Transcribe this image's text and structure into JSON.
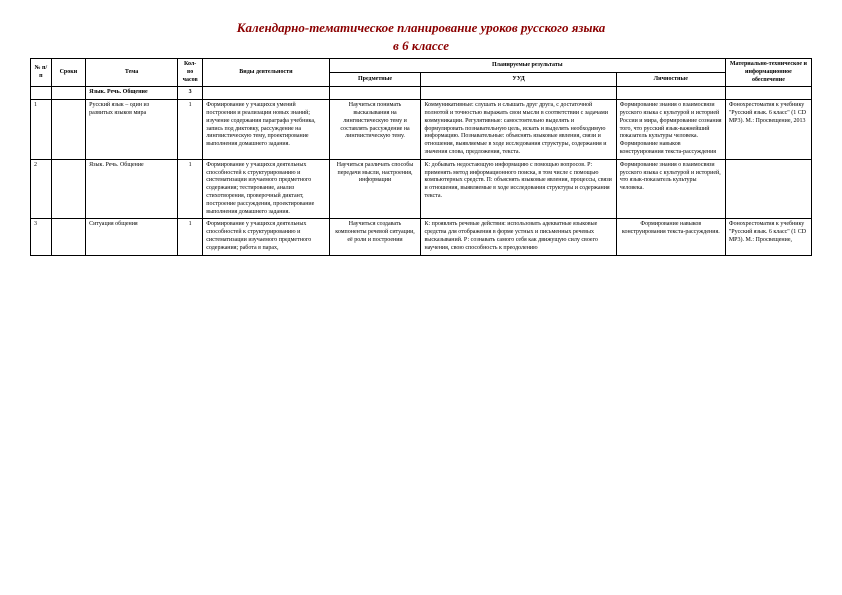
{
  "title": "Календарно-тематическое планирование уроков русского языка",
  "subtitle": "в 6 классе",
  "headers": {
    "num": "№ п/п",
    "date": "Сроки",
    "topic": "Тема",
    "hours": "Кол-во часов",
    "activity": "Виды деятельности",
    "results": "Планируемые результаты",
    "subject": "Предметные",
    "uud": "УУД",
    "personal": "Личностные",
    "material": "Материально-техническое и информационное обеспечение"
  },
  "section": {
    "topic": "Язык. Речь. Общение",
    "hours": "3"
  },
  "rows": [
    {
      "num": "1",
      "date": "",
      "topic": "Русский язык – один из развитых языков мира",
      "hours": "1",
      "activity": "Формирование у учащихся умений построения и реализации новых знаний; изучение содержания параграфа учебника, запись под диктовку, рассуждение на лингвистическую тему, проектирование выполнения домашнего задания.",
      "subject": "Научиться понимать высказывания на лингвистическую тему и составлять рассуждение на лингвистическую тему.",
      "uud": "Коммуникативные: слушать и слышать друг друга, с достаточной полнотой и точностью выражать свои мысли в соответствии с задачами коммуникации. Регулятивные: самостоятельно выделять и формулировать познавательную цель, искать и выделять необходимую информацию. Познавательные: объяснять языковые явления, связи и отношения, выявляемые в ходе исследования структуры, содержания и значения слова, предложения, текста.",
      "personal": "Формирование знания о взаимосвязи русского языка с культурой и историей России и мира, формирование сознания того, что русский язык-важнейший показатель культуры человека. Формирование навыков конструирования текста-рассуждения",
      "material": "Фонохрестоматия к учебнику \"Русский язык. 6 класс\" (1 CD MP3). М.: Просвещение, 2013"
    },
    {
      "num": "2",
      "date": "",
      "topic": "Язык. Речь. Общение",
      "hours": "1",
      "activity": "Формирование у учащихся деятельных способностей к структурированию и систематизации изучаемого предметного содержания; тестирование, анализ стихотворения, проверочный диктант, построение рассуждения, проектирование выполнения домашнего задания.",
      "subject": "Научиться различать способы передачи мысли, настроения, информации",
      "uud": "К: добывать недостающую информацию с помощью вопросов. Р: применять метод информационного поиска, в том числе с помощью компьютерных средств. П: объяснять языковые явления, процессы, связи и отношения, выявляемые в ходе исследования структуры и содержания текста.",
      "personal": "Формирование знания о взаимосвязи русского языка с культурой и историей, что язык-показатель культуры человека.",
      "material": ""
    },
    {
      "num": "3",
      "date": "",
      "topic": "Ситуация общения",
      "hours": "1",
      "activity": "Формирование у учащихся деятельных способностей к структурированию и систематизации изучаемого предметного содержания; работа в парах,",
      "subject": "Научиться создавать компоненты речевой ситуации, её роли и построении",
      "uud": "К: проявлять речевые действия: использовать адекватные языковые средства для отображения в форме устных и письменных речевых высказываний. Р: сознавать самого себя как движущую силу своего научения, свою способность к преодолению",
      "personal": "Формирование навыков конструирования текста-рассуждения.",
      "material": "Фонохрестоматия к учебнику \"Русский язык. 6 класс\" (1 CD MP3). М.: Просвещение,"
    }
  ]
}
